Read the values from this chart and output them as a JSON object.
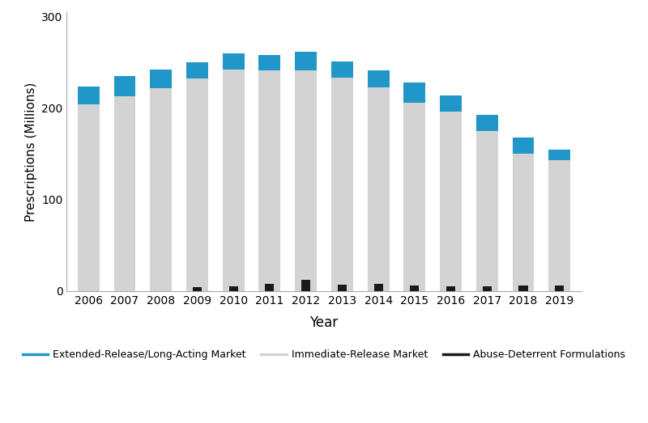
{
  "years": [
    2006,
    2007,
    2008,
    2009,
    2010,
    2011,
    2012,
    2013,
    2014,
    2015,
    2016,
    2017,
    2018,
    2019
  ],
  "immediate_release": [
    204,
    213,
    222,
    232,
    242,
    241,
    241,
    233,
    223,
    206,
    196,
    175,
    150,
    143
  ],
  "er_la": [
    20,
    22,
    20,
    18,
    18,
    17,
    21,
    18,
    18,
    22,
    18,
    18,
    18,
    12
  ],
  "abuse_deterrent": [
    0,
    0,
    0,
    4,
    5,
    8,
    12,
    7,
    8,
    6,
    5,
    5,
    6,
    6
  ],
  "ir_color": "#d3d3d3",
  "erla_color": "#2196c9",
  "ad_color": "#1a1a1a",
  "bar_width": 0.6,
  "ad_bar_width": 0.25,
  "ylabel": "Prescriptions (Millions)",
  "xlabel": "Year",
  "ylim": [
    0,
    305
  ],
  "yticks": [
    0,
    100,
    200,
    300
  ],
  "legend_erla": "Extended-Release/Long-Acting Market",
  "legend_ir": "Immediate-Release Market",
  "legend_ad": "Abuse-Deterrent Formulations",
  "bg_color": "#ffffff"
}
